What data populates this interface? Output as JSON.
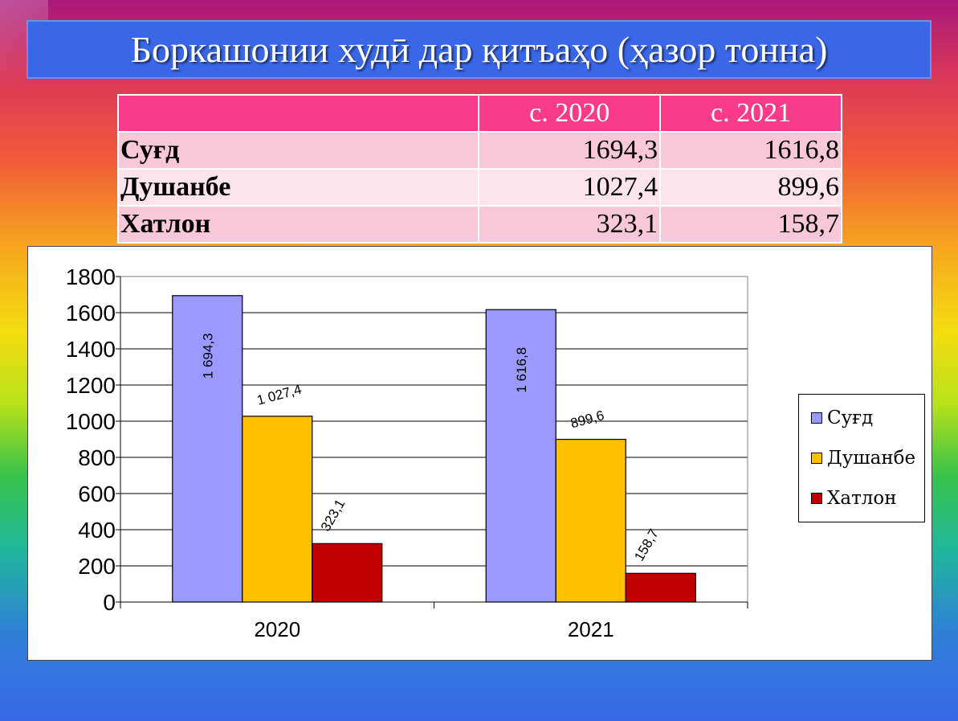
{
  "title": "Боркашонии худӣ дар қитъаҳо (ҳазор тонна)",
  "table": {
    "headers": [
      "",
      "с. 2020",
      "с. 2021"
    ],
    "rows": [
      {
        "name": "Суғд",
        "v2020": "1694,3",
        "v2021": "1616,8"
      },
      {
        "name": "Душанбе",
        "v2020": "1027,4",
        "v2021": "899,6"
      },
      {
        "name": "Хатлон",
        "v2020": "323,1",
        "v2021": "158,7"
      }
    ]
  },
  "chart_data": {
    "type": "bar",
    "categories": [
      "2020",
      "2021"
    ],
    "series": [
      {
        "name": "Суғд",
        "color": "#9999ff",
        "values": [
          1694.3,
          1616.8
        ],
        "labels": [
          "1 694,3",
          "1 616,8"
        ]
      },
      {
        "name": "Душанбе",
        "color": "#ffc000",
        "values": [
          1027.4,
          899.6
        ],
        "labels": [
          "1 027,4",
          "899,6"
        ]
      },
      {
        "name": "Хатлон",
        "color": "#c00000",
        "values": [
          323.1,
          158.7
        ],
        "labels": [
          "323,1",
          "158,7"
        ]
      }
    ],
    "ylim": [
      0,
      1800
    ],
    "yticks": [
      "0",
      "200",
      "400",
      "600",
      "800",
      "1000",
      "1200",
      "1400",
      "1600",
      "1800"
    ],
    "grid": true,
    "legend_position": "right"
  }
}
